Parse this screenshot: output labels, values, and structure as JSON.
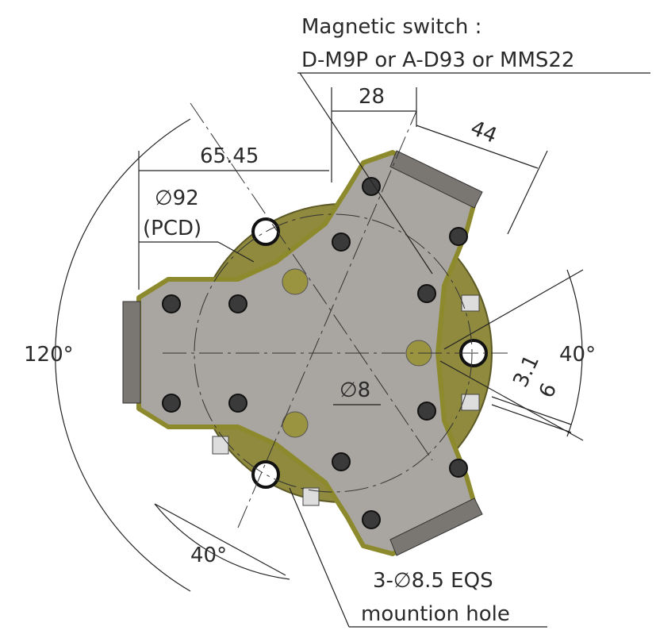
{
  "switch": {
    "title": "Magnetic switch :",
    "models": "D-M9P or A-D93 or MMS22"
  },
  "dimensions": {
    "width_28": "28",
    "width_44": "44",
    "offset": "65.45",
    "pcd": "∅92",
    "pcd_note": "(PCD)",
    "angle_120": "120°",
    "angle_right": "40°",
    "gap_3_1": "3.1",
    "gap_6": "6",
    "bore": "∅8",
    "angle_bottom": "40°"
  },
  "mounting": {
    "holes": "3-∅8.5 EQS",
    "note": "mountion hole"
  }
}
